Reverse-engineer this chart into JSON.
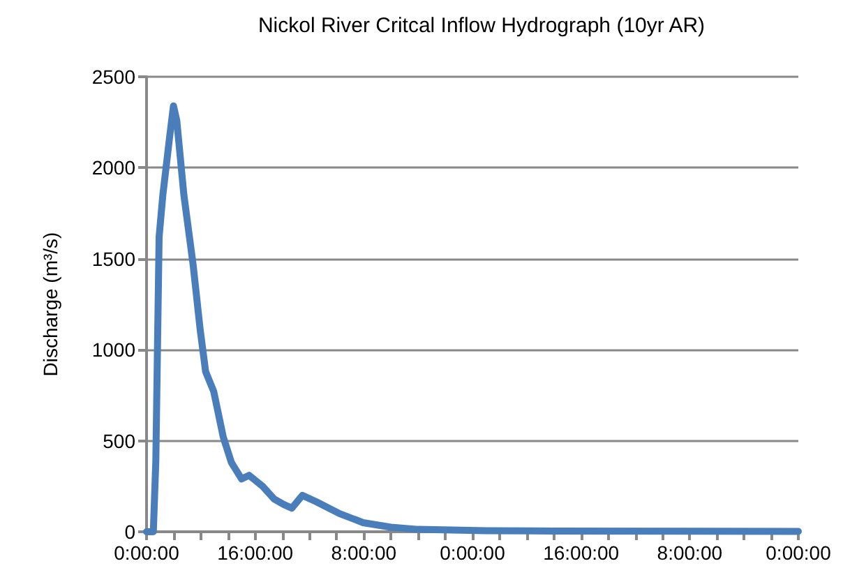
{
  "chart_data": {
    "type": "line",
    "title": "Nickol River Critcal Inflow Hydrograph (10yr AR)",
    "ylabel": "Discharge (m³/s)",
    "x": [
      "2000-01-01T00:00",
      "2000-01-01T00:20",
      "2000-01-01T01:00",
      "2000-01-01T01:22",
      "2000-01-01T01:51",
      "2000-01-01T02:24",
      "2000-01-01T03:26",
      "2000-01-01T03:58",
      "2000-01-01T04:27",
      "2000-01-01T05:30",
      "2000-01-01T06:51",
      "2000-01-01T07:54",
      "2000-01-01T08:42",
      "2000-01-01T09:54",
      "2000-01-01T11:18",
      "2000-01-01T12:30",
      "2000-01-01T14:00",
      "2000-01-01T15:06",
      "2000-01-01T17:06",
      "2000-01-01T18:48",
      "2000-01-01T20:12",
      "2000-01-01T21:24",
      "2000-01-01T22:57",
      "2000-01-02T01:00",
      "2000-01-02T04:24",
      "2000-01-02T07:54",
      "2000-01-02T12:00",
      "2000-01-02T16:00",
      "2000-01-03T02:00",
      "2000-01-03T12:00",
      "2000-01-05T00:00"
    ],
    "series": [
      {
        "color": "#4a7ebb",
        "values": [
          0,
          0,
          0,
          390,
          1620,
          1850,
          2180,
          2340,
          2260,
          1850,
          1470,
          1110,
          880,
          770,
          520,
          380,
          290,
          310,
          250,
          180,
          150,
          130,
          200,
          165,
          100,
          50,
          25,
          13,
          6,
          4,
          2
        ]
      }
    ],
    "xlim": [
      "2000-01-01T00:00",
      "2000-01-05T00:00"
    ],
    "xticks": [
      {
        "value": "2000-01-01T00:00",
        "label": "0:00:00"
      },
      {
        "value": "2000-01-01T04:00",
        "label": null
      },
      {
        "value": "2000-01-01T08:00",
        "label": null
      },
      {
        "value": "2000-01-01T12:00",
        "label": null
      },
      {
        "value": "2000-01-01T16:00",
        "label": "16:00:00"
      },
      {
        "value": "2000-01-01T20:00",
        "label": null
      },
      {
        "value": "2000-01-02T00:00",
        "label": null
      },
      {
        "value": "2000-01-02T04:00",
        "label": null
      },
      {
        "value": "2000-01-02T08:00",
        "label": "8:00:00"
      },
      {
        "value": "2000-01-02T12:00",
        "label": null
      },
      {
        "value": "2000-01-02T16:00",
        "label": null
      },
      {
        "value": "2000-01-02T20:00",
        "label": null
      },
      {
        "value": "2000-01-03T00:00",
        "label": "0:00:00"
      },
      {
        "value": "2000-01-03T04:00",
        "label": null
      },
      {
        "value": "2000-01-03T08:00",
        "label": null
      },
      {
        "value": "2000-01-03T12:00",
        "label": null
      },
      {
        "value": "2000-01-03T16:00",
        "label": "16:00:00"
      },
      {
        "value": "2000-01-03T20:00",
        "label": null
      },
      {
        "value": "2000-01-04T00:00",
        "label": null
      },
      {
        "value": "2000-01-04T04:00",
        "label": null
      },
      {
        "value": "2000-01-04T08:00",
        "label": "8:00:00"
      },
      {
        "value": "2000-01-04T12:00",
        "label": null
      },
      {
        "value": "2000-01-04T16:00",
        "label": null
      },
      {
        "value": "2000-01-04T20:00",
        "label": null
      },
      {
        "value": "2000-01-05T00:00",
        "label": "0:00:00"
      }
    ],
    "ylim": [
      0,
      2500
    ],
    "yticks": [
      0,
      500,
      1000,
      1500,
      2000,
      2500
    ],
    "grid": "y"
  }
}
